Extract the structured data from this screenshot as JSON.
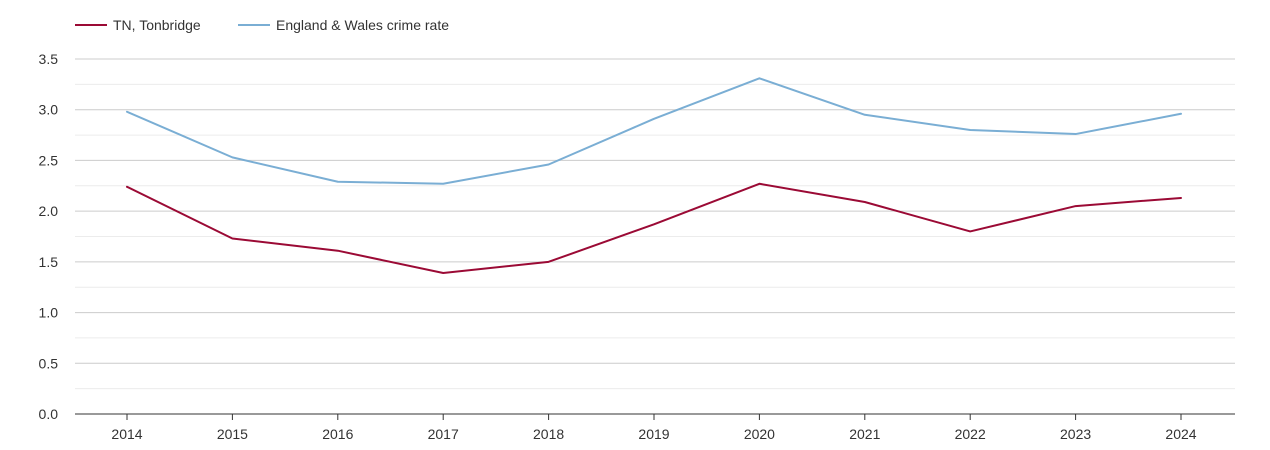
{
  "chart_data": {
    "type": "line",
    "title": "",
    "xlabel": "",
    "ylabel": "",
    "categories": [
      "2014",
      "2015",
      "2016",
      "2017",
      "2018",
      "2019",
      "2020",
      "2021",
      "2022",
      "2023",
      "2024"
    ],
    "ylim": [
      0,
      3.5
    ],
    "yticks": [
      "0.0",
      "0.5",
      "1.0",
      "1.5",
      "2.0",
      "2.5",
      "3.0",
      "3.5"
    ],
    "ytick_values": [
      0,
      0.5,
      1.0,
      1.5,
      2.0,
      2.5,
      3.0,
      3.5
    ],
    "grid": true,
    "legend_position": "top-left",
    "series": [
      {
        "name": "TN, Tonbridge",
        "color": "#9b0a35",
        "values": [
          2.24,
          1.73,
          1.61,
          1.39,
          1.5,
          1.87,
          2.27,
          2.09,
          1.8,
          2.05,
          2.13
        ]
      },
      {
        "name": "England & Wales crime rate",
        "color": "#7aaed4",
        "values": [
          2.98,
          2.53,
          2.29,
          2.27,
          2.46,
          2.91,
          3.31,
          2.95,
          2.8,
          2.76,
          2.96
        ]
      }
    ]
  }
}
